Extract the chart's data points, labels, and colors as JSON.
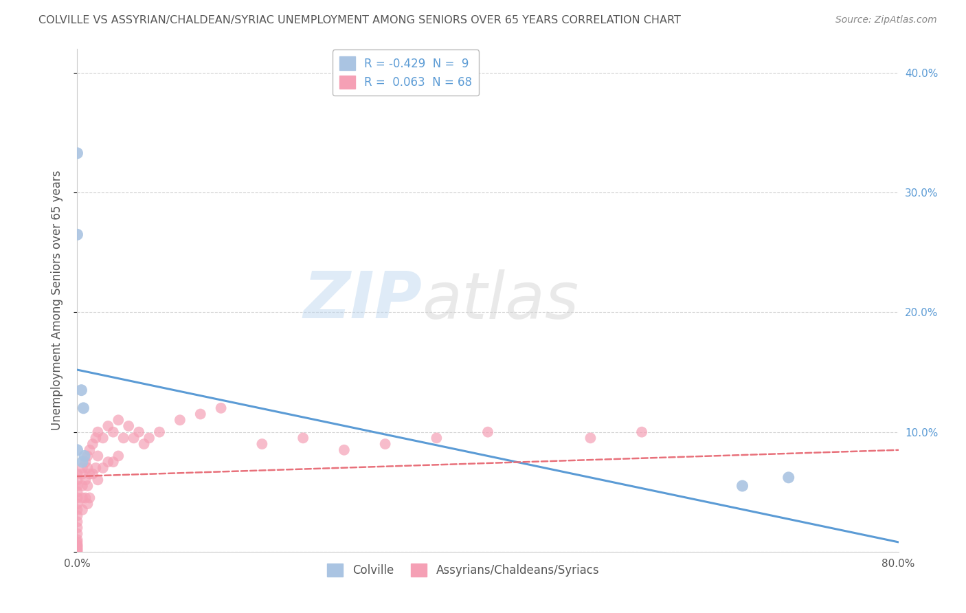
{
  "title": "COLVILLE VS ASSYRIAN/CHALDEAN/SYRIAC UNEMPLOYMENT AMONG SENIORS OVER 65 YEARS CORRELATION CHART",
  "source": "Source: ZipAtlas.com",
  "ylabel": "Unemployment Among Seniors over 65 years",
  "colville_R": -0.429,
  "colville_N": 9,
  "assyrian_R": 0.063,
  "assyrian_N": 68,
  "colville_dot_color": "#aac4e2",
  "assyrian_dot_color": "#f5a0b5",
  "colville_line_color": "#5b9bd5",
  "assyrian_line_color": "#e8707a",
  "background_color": "#ffffff",
  "grid_color": "#cccccc",
  "title_color": "#555555",
  "watermark_zip": "ZIP",
  "watermark_atlas": "atlas",
  "xlim": [
    0.0,
    0.8
  ],
  "ylim": [
    0.0,
    0.42
  ],
  "xticks": [
    0.0,
    0.1,
    0.2,
    0.3,
    0.4,
    0.5,
    0.6,
    0.7,
    0.8
  ],
  "xtick_labels": [
    "0.0%",
    "",
    "",
    "",
    "",
    "",
    "",
    "",
    "80.0%"
  ],
  "yticks": [
    0.0,
    0.1,
    0.2,
    0.3,
    0.4
  ],
  "right_ytick_labels": [
    "",
    "10.0%",
    "20.0%",
    "30.0%",
    "40.0%"
  ],
  "colville_x": [
    0.0,
    0.0,
    0.0,
    0.004,
    0.005,
    0.006,
    0.007,
    0.648,
    0.693
  ],
  "colville_y": [
    0.333,
    0.265,
    0.085,
    0.135,
    0.075,
    0.12,
    0.08,
    0.055,
    0.062
  ],
  "assyrian_x": [
    0.0,
    0.0,
    0.0,
    0.0,
    0.0,
    0.0,
    0.0,
    0.0,
    0.0,
    0.0,
    0.0,
    0.0,
    0.0,
    0.0,
    0.0,
    0.0,
    0.0,
    0.0,
    0.0,
    0.0,
    0.005,
    0.005,
    0.005,
    0.005,
    0.005,
    0.008,
    0.008,
    0.008,
    0.01,
    0.01,
    0.01,
    0.01,
    0.012,
    0.012,
    0.012,
    0.015,
    0.015,
    0.018,
    0.018,
    0.02,
    0.02,
    0.02,
    0.025,
    0.025,
    0.03,
    0.03,
    0.035,
    0.035,
    0.04,
    0.04,
    0.045,
    0.05,
    0.055,
    0.06,
    0.065,
    0.07,
    0.08,
    0.1,
    0.12,
    0.14,
    0.18,
    0.22,
    0.26,
    0.3,
    0.35,
    0.4,
    0.5,
    0.55
  ],
  "assyrian_y": [
    0.065,
    0.06,
    0.055,
    0.05,
    0.045,
    0.04,
    0.035,
    0.03,
    0.025,
    0.02,
    0.015,
    0.01,
    0.008,
    0.006,
    0.005,
    0.004,
    0.003,
    0.002,
    0.001,
    0.0,
    0.07,
    0.065,
    0.055,
    0.045,
    0.035,
    0.075,
    0.06,
    0.045,
    0.08,
    0.07,
    0.055,
    0.04,
    0.085,
    0.065,
    0.045,
    0.09,
    0.065,
    0.095,
    0.07,
    0.1,
    0.08,
    0.06,
    0.095,
    0.07,
    0.105,
    0.075,
    0.1,
    0.075,
    0.11,
    0.08,
    0.095,
    0.105,
    0.095,
    0.1,
    0.09,
    0.095,
    0.1,
    0.11,
    0.115,
    0.12,
    0.09,
    0.095,
    0.085,
    0.09,
    0.095,
    0.1,
    0.095,
    0.1
  ]
}
